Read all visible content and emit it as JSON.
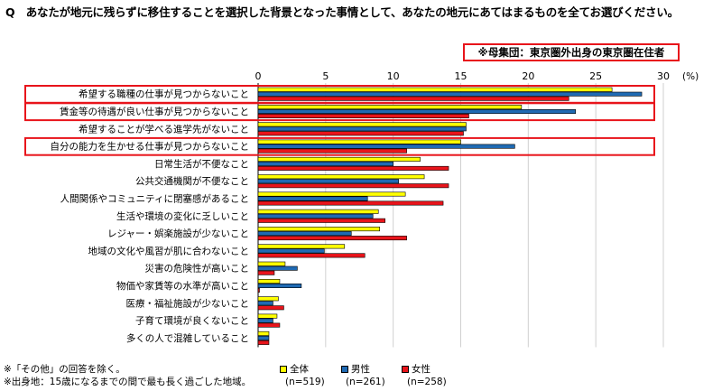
{
  "question": "Q　あなたが地元に残らずに移住することを選択した背景となった事情として、あなたの地元にあてはまるものを全てお選びください。",
  "subset_label": "※母集団：東京圏外出身の東京圏在住者",
  "notes": [
    "※「その他」の回答を除く。",
    "※出身地：15歳になるまでの間で最も長く過ごした地域。"
  ],
  "legend": [
    {
      "name": "全体",
      "n": "(n=519)",
      "color": "#ffff00"
    },
    {
      "name": "男性",
      "n": "(n=261)",
      "color": "#1f6ab3"
    },
    {
      "name": "女性",
      "n": "(n=258)",
      "color": "#e8141b"
    }
  ],
  "chart_data": {
    "type": "bar",
    "orientation": "horizontal",
    "unit": "(%)",
    "xlim": [
      0,
      30
    ],
    "ticks": [
      0,
      5,
      10,
      15,
      20,
      25,
      30
    ],
    "grid": true,
    "legend_position": "bottom",
    "categories": [
      "希望する職種の仕事が見つからないこと",
      "賃金等の待遇が良い仕事が見つからないこと",
      "希望することが学べる進学先がないこと",
      "自分の能力を生かせる仕事が見つからないこと",
      "日常生活が不便なこと",
      "公共交通機関が不便なこと",
      "人間関係やコミュニティに閉塞感があること",
      "生活や環境の変化に乏しいこと",
      "レジャー・娯楽施設が少ないこと",
      "地域の文化や風習が肌に合わないこと",
      "災害の危険性が高いこと",
      "物価や家賃等の水準が高いこと",
      "医療・福祉施設が少ないこと",
      "子育て環境が良くないこと",
      "多くの人で混雑していること"
    ],
    "series": [
      {
        "name": "全体",
        "values": [
          26.2,
          19.5,
          15.4,
          15.0,
          12.0,
          12.3,
          10.9,
          8.9,
          9.0,
          6.4,
          2.0,
          1.6,
          1.5,
          1.4,
          0.8
        ]
      },
      {
        "name": "男性",
        "values": [
          28.4,
          23.5,
          15.4,
          19.0,
          10.0,
          10.4,
          8.1,
          8.5,
          6.9,
          4.9,
          2.9,
          3.2,
          1.1,
          1.1,
          0.8
        ]
      },
      {
        "name": "女性",
        "values": [
          23.0,
          15.6,
          15.2,
          11.0,
          14.1,
          14.1,
          13.7,
          9.4,
          11.0,
          7.9,
          1.2,
          0.1,
          1.9,
          1.6,
          0.8
        ]
      }
    ],
    "highlighted": [
      0,
      1,
      3
    ]
  }
}
